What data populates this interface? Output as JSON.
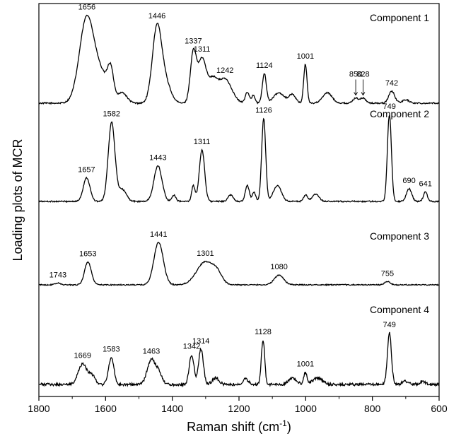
{
  "chart_data": {
    "type": "line",
    "xlabel": "Raman shift (cm",
    "xlabel_sup": "-1",
    "xlabel_end": ")",
    "ylabel": "Loading plots of MCR",
    "xlim": [
      1800,
      600
    ],
    "x_reversed": true,
    "x_ticks": [
      1800,
      1600,
      1400,
      1200,
      1000,
      800,
      600
    ],
    "x_tick_labels": [
      "1800",
      "1600",
      "1400",
      "1200",
      "1000",
      "800",
      "600"
    ],
    "y_ticks": false,
    "grid": false,
    "series": [
      {
        "name": "Component 1",
        "baseline": 0.0,
        "noise": 0.008,
        "peaks": [
          [
            1656,
            1.0,
            22
          ],
          [
            1610,
            0.28,
            20
          ],
          [
            1585,
            0.32,
            9
          ],
          [
            1550,
            0.12,
            14
          ],
          [
            1446,
            0.86,
            14
          ],
          [
            1420,
            0.22,
            16
          ],
          [
            1337,
            0.58,
            9
          ],
          [
            1311,
            0.5,
            12
          ],
          [
            1280,
            0.25,
            14
          ],
          [
            1242,
            0.28,
            20
          ],
          [
            1175,
            0.13,
            6
          ],
          [
            1157,
            0.09,
            5
          ],
          [
            1124,
            0.34,
            6
          ],
          [
            1080,
            0.12,
            16
          ],
          [
            1040,
            0.1,
            10
          ],
          [
            1001,
            0.45,
            5
          ],
          [
            935,
            0.12,
            14
          ],
          [
            850,
            0.06,
            8
          ],
          [
            828,
            0.06,
            8
          ],
          [
            742,
            0.14,
            9
          ],
          [
            700,
            0.04,
            10
          ]
        ],
        "annotations": [
          {
            "x": 1656,
            "label": "1656"
          },
          {
            "x": 1446,
            "label": "1446"
          },
          {
            "x": 1337,
            "label": "1337"
          },
          {
            "x": 1311,
            "label": "1311"
          },
          {
            "x": 1242,
            "label": "1242"
          },
          {
            "x": 1124,
            "label": "1124"
          },
          {
            "x": 1001,
            "label": "1001"
          },
          {
            "x": 850,
            "label": "850"
          },
          {
            "x": 828,
            "label": "828"
          },
          {
            "x": 742,
            "label": "742"
          }
        ],
        "arrows": [
          850,
          828
        ]
      },
      {
        "name": "Component 2",
        "baseline": 0.0,
        "noise": 0.008,
        "peaks": [
          [
            1657,
            0.3,
            10
          ],
          [
            1582,
            1.0,
            10
          ],
          [
            1550,
            0.15,
            12
          ],
          [
            1443,
            0.45,
            12
          ],
          [
            1395,
            0.08,
            6
          ],
          [
            1337,
            0.2,
            5
          ],
          [
            1311,
            0.65,
            8
          ],
          [
            1225,
            0.08,
            8
          ],
          [
            1175,
            0.2,
            6
          ],
          [
            1155,
            0.12,
            5
          ],
          [
            1126,
            1.05,
            6
          ],
          [
            1085,
            0.2,
            12
          ],
          [
            1000,
            0.08,
            6
          ],
          [
            970,
            0.09,
            10
          ],
          [
            749,
            1.1,
            6
          ],
          [
            690,
            0.16,
            8
          ],
          [
            641,
            0.12,
            6
          ]
        ],
        "annotations": [
          {
            "x": 1657,
            "label": "1657"
          },
          {
            "x": 1582,
            "label": "1582"
          },
          {
            "x": 1443,
            "label": "1443"
          },
          {
            "x": 1311,
            "label": "1311"
          },
          {
            "x": 1126,
            "label": "1126"
          },
          {
            "x": 749,
            "label": "749"
          },
          {
            "x": 690,
            "label": "690"
          },
          {
            "x": 641,
            "label": "641"
          }
        ],
        "arrows": []
      },
      {
        "name": "Component 3",
        "baseline": 0.0,
        "noise": 0.01,
        "peaks": [
          [
            1743,
            0.03,
            8
          ],
          [
            1653,
            0.42,
            10
          ],
          [
            1441,
            0.78,
            14
          ],
          [
            1301,
            0.42,
            26
          ],
          [
            1265,
            0.15,
            14
          ],
          [
            1080,
            0.18,
            14
          ],
          [
            755,
            0.06,
            8
          ]
        ],
        "annotations": [
          {
            "x": 1743,
            "label": "1743"
          },
          {
            "x": 1653,
            "label": "1653"
          },
          {
            "x": 1441,
            "label": "1441"
          },
          {
            "x": 1301,
            "label": "1301"
          },
          {
            "x": 1080,
            "label": "1080"
          },
          {
            "x": 755,
            "label": "755"
          }
        ],
        "arrows": []
      },
      {
        "name": "Component 4",
        "baseline": 0.0,
        "noise": 0.025,
        "peaks": [
          [
            1669,
            0.38,
            13
          ],
          [
            1640,
            0.15,
            10
          ],
          [
            1583,
            0.5,
            8
          ],
          [
            1463,
            0.45,
            12
          ],
          [
            1440,
            0.2,
            10
          ],
          [
            1342,
            0.55,
            7
          ],
          [
            1314,
            0.65,
            7
          ],
          [
            1270,
            0.12,
            10
          ],
          [
            1180,
            0.1,
            8
          ],
          [
            1128,
            0.82,
            5
          ],
          [
            1040,
            0.12,
            12
          ],
          [
            1001,
            0.22,
            5
          ],
          [
            965,
            0.12,
            14
          ],
          [
            749,
            0.95,
            6
          ],
          [
            700,
            0.06,
            10
          ],
          [
            650,
            0.06,
            8
          ]
        ],
        "annotations": [
          {
            "x": 1669,
            "label": "1669"
          },
          {
            "x": 1583,
            "label": "1583"
          },
          {
            "x": 1463,
            "label": "1463"
          },
          {
            "x": 1342,
            "label": "1342"
          },
          {
            "x": 1314,
            "label": "1314"
          },
          {
            "x": 1128,
            "label": "1128"
          },
          {
            "x": 1001,
            "label": "1001"
          },
          {
            "x": 749,
            "label": "749"
          }
        ],
        "arrows": []
      }
    ]
  }
}
